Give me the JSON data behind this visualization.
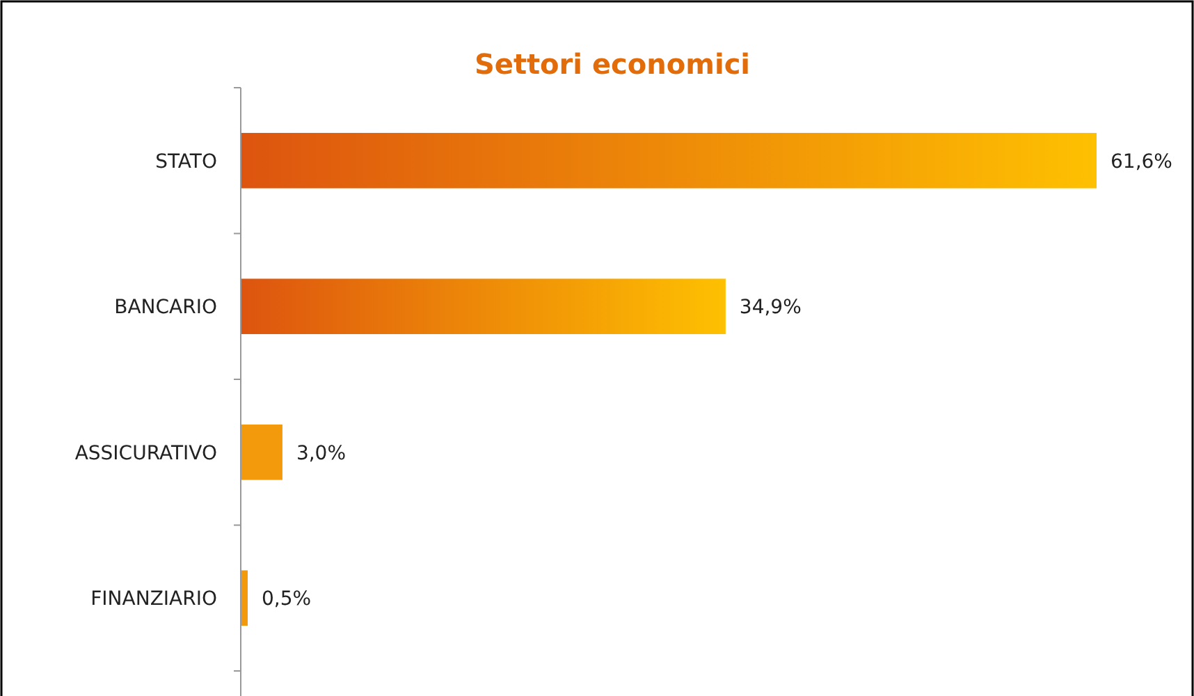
{
  "chart_data": {
    "type": "bar",
    "title": "Settori economici",
    "orientation": "horizontal",
    "categories": [
      "STATO",
      "BANCARIO",
      "ASSICURATIVO",
      "FINANZIARIO"
    ],
    "values": [
      61.6,
      34.9,
      3.0,
      0.5
    ],
    "value_labels": [
      "61,6%",
      "34,9%",
      "3,0%",
      "0,5%"
    ],
    "color": "#f39a0c"
  }
}
